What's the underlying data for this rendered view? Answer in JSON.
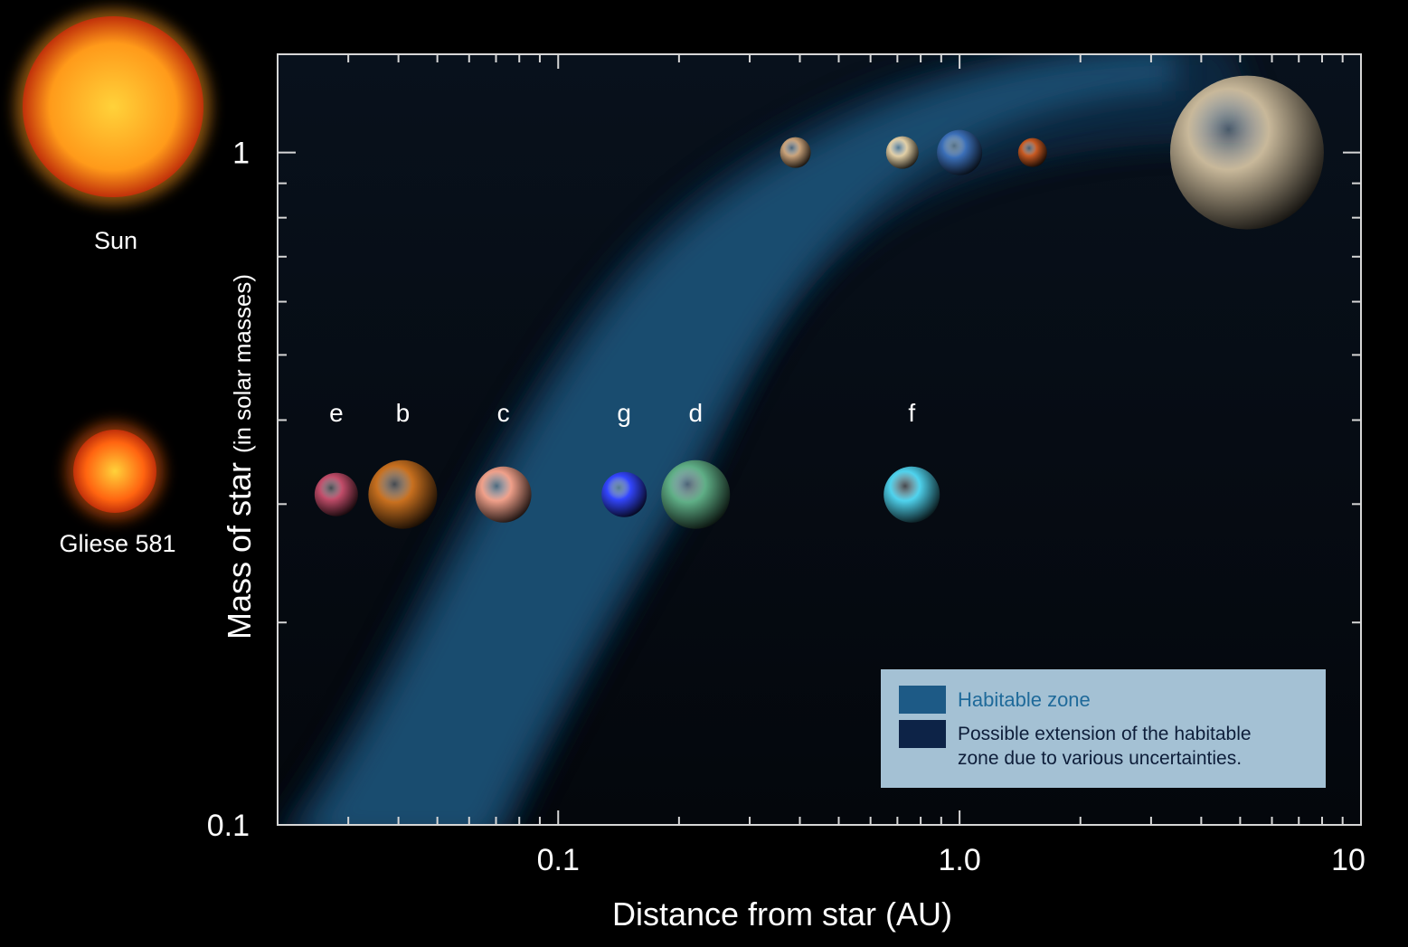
{
  "stars": [
    {
      "name": "Sun",
      "color": "#ff9a1a"
    },
    {
      "name": "Gliese 581",
      "color": "#ff6410"
    }
  ],
  "chart_data": {
    "type": "scatter",
    "xlabel": "Distance from star (AU)",
    "ylabel_main": "Mass of star",
    "ylabel_sub": "(in solar masses)",
    "xscale": "log",
    "yscale": "log",
    "xlim": [
      0.02,
      10
    ],
    "ylim": [
      0.1,
      1.4
    ],
    "x_tick_labels": [
      {
        "value": 0.1,
        "label": "0.1"
      },
      {
        "value": 1,
        "label": "1.0"
      },
      {
        "value": 10,
        "label": "10"
      }
    ],
    "y_tick_labels": [
      {
        "value": 0.1,
        "label": "0.1"
      },
      {
        "value": 1,
        "label": "1"
      }
    ],
    "series": [
      {
        "points": [
          {
            "x": 0.39,
            "y": 1.0,
            "color": "#c9a27a"
          },
          {
            "x": 0.72,
            "y": 1.0,
            "color": "#e2cfa6"
          },
          {
            "x": 1.0,
            "y": 1.0,
            "color": "#3b6fb8"
          },
          {
            "x": 1.52,
            "y": 1.0,
            "color": "#c85a22"
          },
          {
            "x": 5.2,
            "y": 1.0,
            "color": "#c8b89a"
          }
        ]
      },
      {
        "points": [
          {
            "label": "e",
            "x": 0.028,
            "y": 0.31,
            "color": "#c24d6a"
          },
          {
            "label": "b",
            "x": 0.041,
            "y": 0.31,
            "color": "#c8701f"
          },
          {
            "label": "c",
            "x": 0.073,
            "y": 0.31,
            "color": "#f0a08a"
          },
          {
            "label": "g",
            "x": 0.146,
            "y": 0.31,
            "color": "#3346ff"
          },
          {
            "label": "d",
            "x": 0.22,
            "y": 0.31,
            "color": "#5fae86"
          },
          {
            "label": "f",
            "x": 0.76,
            "y": 0.31,
            "color": "#4fd3ee"
          }
        ]
      }
    ],
    "legend": {
      "position": "bottom-right",
      "items": [
        {
          "label": "Habitable zone",
          "color": "#1d5a86",
          "text_color": "#1f6a9a"
        },
        {
          "label_lines": [
            "Possible extension of the habitable",
            "zone due to various uncertainties."
          ],
          "color": "#0d2347",
          "text_color": "#0e1e3a"
        }
      ],
      "background": "#a4c1d4"
    },
    "colors": {
      "habitable_zone": "#1b5278",
      "extension": "#0b2a44",
      "axis": "#d6d6d6",
      "plot_bg": "#050910"
    }
  }
}
